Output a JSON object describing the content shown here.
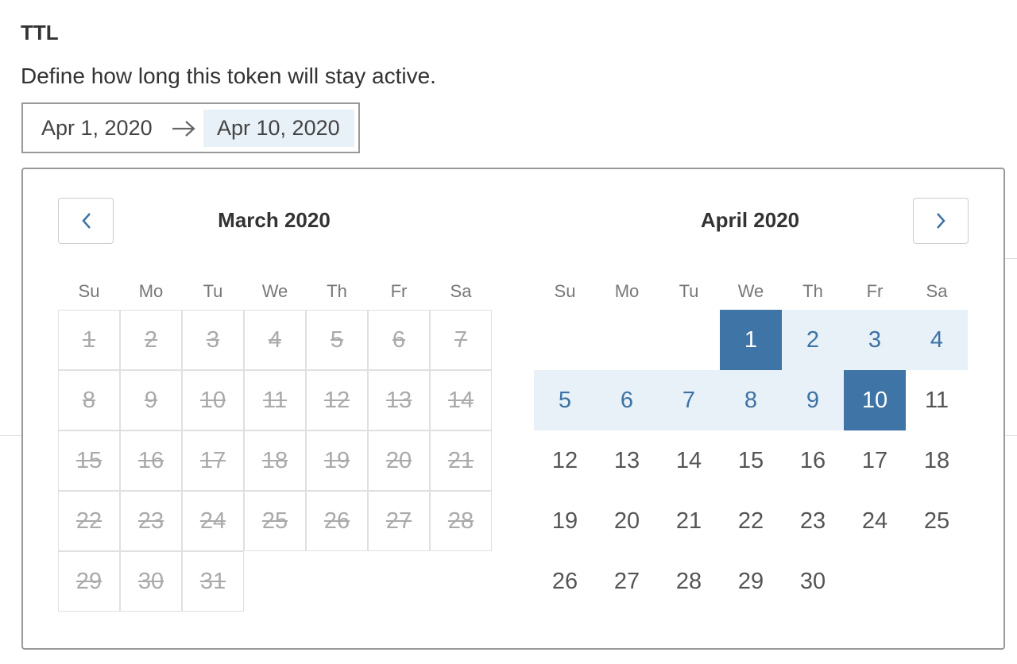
{
  "field": {
    "label": "TTL",
    "description": "Define how long this token will stay active.",
    "start": "Apr 1, 2020",
    "end": "Apr 10, 2020"
  },
  "calendar": {
    "months": [
      {
        "title": "March 2020",
        "disabled": true,
        "weekdays": [
          "Su",
          "Mo",
          "Tu",
          "We",
          "Th",
          "Fr",
          "Sa"
        ],
        "weeks": [
          [
            1,
            2,
            3,
            4,
            5,
            6,
            7
          ],
          [
            8,
            9,
            10,
            11,
            12,
            13,
            14
          ],
          [
            15,
            16,
            17,
            18,
            19,
            20,
            21
          ],
          [
            22,
            23,
            24,
            25,
            26,
            27,
            28
          ],
          [
            29,
            30,
            31,
            null,
            null,
            null,
            null
          ]
        ]
      },
      {
        "title": "April 2020",
        "disabled": false,
        "selected_start": 1,
        "selected_end": 10,
        "weekdays": [
          "Su",
          "Mo",
          "Tu",
          "We",
          "Th",
          "Fr",
          "Sa"
        ],
        "weeks": [
          [
            null,
            null,
            null,
            1,
            2,
            3,
            4
          ],
          [
            5,
            6,
            7,
            8,
            9,
            10,
            11
          ],
          [
            12,
            13,
            14,
            15,
            16,
            17,
            18
          ],
          [
            19,
            20,
            21,
            22,
            23,
            24,
            25
          ],
          [
            26,
            27,
            28,
            29,
            30,
            null,
            null
          ]
        ]
      }
    ]
  }
}
